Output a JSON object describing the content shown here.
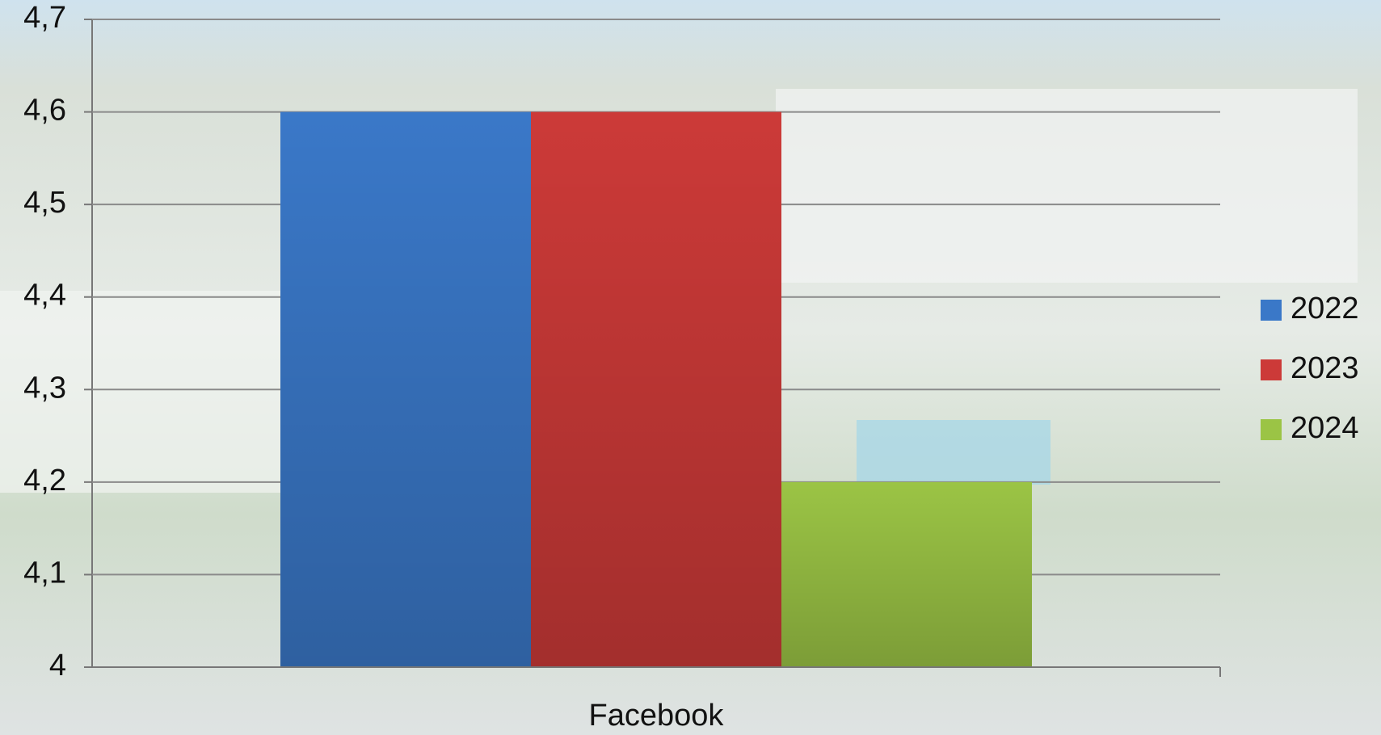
{
  "chart_data": {
    "type": "bar",
    "categories": [
      "Facebook"
    ],
    "series": [
      {
        "name": "2022",
        "color": "#3a78c8",
        "values": [
          4.6
        ]
      },
      {
        "name": "2023",
        "color": "#cc3a38",
        "values": [
          4.6
        ]
      },
      {
        "name": "2024",
        "color": "#9bc445",
        "values": [
          4.2
        ]
      }
    ],
    "ylim": [
      4,
      4.7
    ],
    "yticks": [
      4,
      {
        "value": 4.1,
        "label": "4,1"
      },
      {
        "value": 4.2,
        "label": "4,2"
      },
      {
        "value": 4.3,
        "label": "4,3"
      },
      {
        "value": 4.4,
        "label": "4,4"
      },
      {
        "value": 4.5,
        "label": "4,5"
      },
      {
        "value": 4.6,
        "label": "4,6"
      },
      {
        "value": 4.7,
        "label": "4,7"
      }
    ],
    "grid": true,
    "legend": "right"
  }
}
